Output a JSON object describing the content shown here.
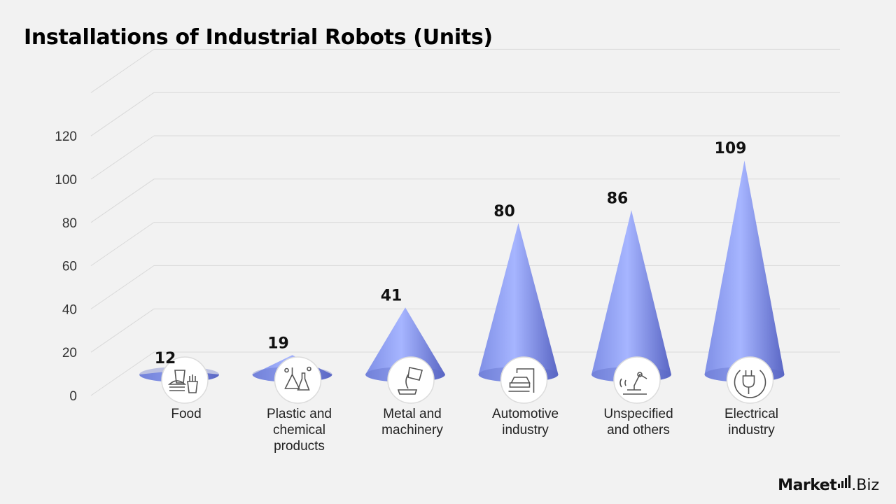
{
  "chart_data": {
    "type": "bar",
    "title": "Installations of Industrial Robots (Units)",
    "categories": [
      [
        "Food"
      ],
      [
        "Plastic and",
        "chemical",
        "products"
      ],
      [
        "Metal and",
        "machinery"
      ],
      [
        "Automotive",
        "industry"
      ],
      [
        "Unspecified",
        "and others"
      ],
      [
        "Electrical",
        "industry"
      ]
    ],
    "values": [
      12,
      19,
      41,
      80,
      86,
      109
    ],
    "data_labels": [
      "12",
      "19",
      "41",
      "80",
      "86",
      "109"
    ],
    "yticks": [
      "0",
      "20",
      "40",
      "60",
      "80",
      "100",
      "120"
    ],
    "ylim": [
      0,
      140
    ],
    "xlabel": "",
    "ylabel": "",
    "grid": true,
    "legend": "none",
    "mark_shape": "cone",
    "icons": [
      "food-icon",
      "chemistry-flask-icon",
      "metal-pouring-icon",
      "car-assembly-icon",
      "robot-arm-icon",
      "electric-plug-icon"
    ],
    "colors": {
      "cone_light": "#a6b5ff",
      "cone_mid": "#7f8fe6",
      "cone_dark": "#5a66c4",
      "grid": "#d9d9d9"
    }
  },
  "brand": {
    "name_bold": "Market",
    "name_light": ".Biz"
  }
}
